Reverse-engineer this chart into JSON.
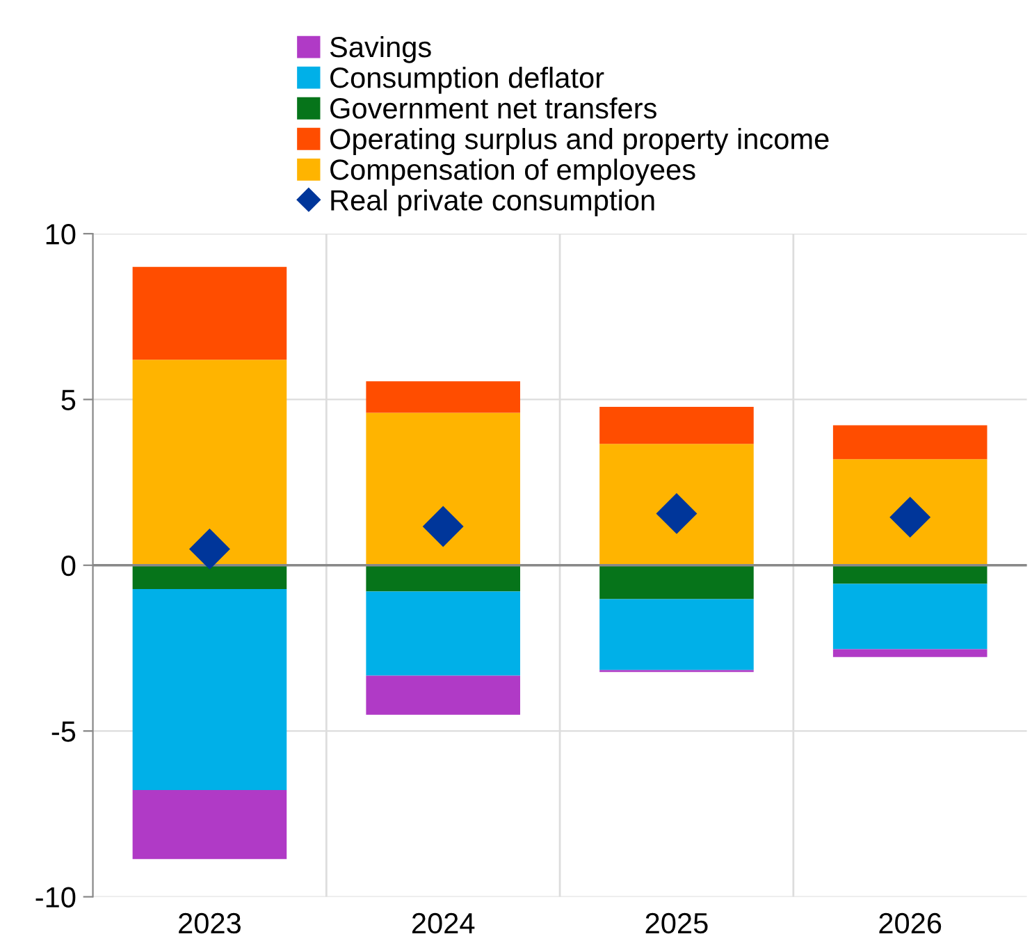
{
  "chart_data": {
    "type": "bar",
    "stacked": true,
    "categories": [
      "2023",
      "2024",
      "2025",
      "2026"
    ],
    "series": [
      {
        "name": "Compensation of employees",
        "color": "#ffb400",
        "values": [
          6.2,
          4.6,
          3.66,
          3.2
        ]
      },
      {
        "name": "Operating surplus and property income",
        "color": "#ff4d00",
        "values": [
          2.8,
          0.95,
          1.12,
          1.02
        ]
      },
      {
        "name": "Government net transfers",
        "color": "#06741a",
        "values": [
          -0.72,
          -0.79,
          -1.02,
          -0.56
        ]
      },
      {
        "name": "Consumption deflator",
        "color": "#00b0e8",
        "values": [
          -6.06,
          -2.54,
          -2.14,
          -1.97
        ]
      },
      {
        "name": "Savings",
        "color": "#b03ac6",
        "values": [
          -2.08,
          -1.18,
          -0.06,
          -0.24
        ]
      },
      {
        "name": "Real private consumption",
        "type": "scatter",
        "color": "#00369a",
        "values": [
          0.49,
          1.17,
          1.56,
          1.45
        ]
      }
    ],
    "ylim": [
      -10,
      10
    ],
    "yticks": [
      -10,
      -5,
      0,
      5,
      10
    ],
    "grid": true,
    "legend": "top",
    "marker": "diamond"
  }
}
